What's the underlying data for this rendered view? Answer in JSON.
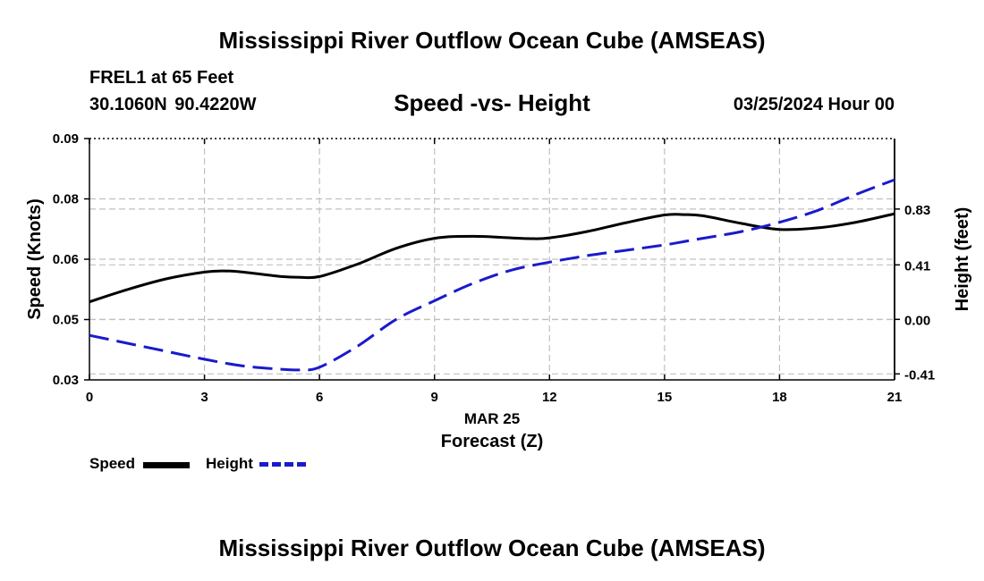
{
  "header": {
    "main_title": "Mississippi River Outflow Ocean Cube (AMSEAS)",
    "station": "FREL1 at 65 Feet",
    "coordinates": "30.1060N  90.4220W",
    "chart_title": "Speed -vs- Height",
    "datetime": "03/25/2024 Hour 00"
  },
  "footer": {
    "title": "Mississippi River Outflow Ocean Cube (AMSEAS)"
  },
  "legend": {
    "speed_label": "Speed",
    "height_label": "Height"
  },
  "colors": {
    "speed": "#000000",
    "height": "#1a1acc",
    "grid": "#c0c0c0"
  },
  "chart_data": {
    "type": "line",
    "title": "Speed -vs- Height",
    "xlabel": "Forecast (Z)",
    "xlabel_date": "MAR 25",
    "ylabel": "Speed (Knots)",
    "y2label": "Height (feet)",
    "xlim": [
      0,
      21
    ],
    "x_ticks": [
      0,
      3,
      6,
      9,
      12,
      15,
      18,
      21
    ],
    "ylim": [
      0.03,
      0.09
    ],
    "y_ticks": [
      0.03,
      0.045,
      0.06,
      0.075,
      0.09
    ],
    "y_tick_labels": [
      "0.03",
      "0.05",
      "0.06",
      "0.08",
      "0.09"
    ],
    "y2lim": [
      -0.455,
      1.36
    ],
    "y2_ticks": [
      -0.41,
      0.0,
      0.41,
      0.83
    ],
    "y2_tick_labels": [
      "-0.41",
      "0.00",
      "0.41",
      "0.83"
    ],
    "grid": true,
    "legend_position": "bottom-left",
    "series": [
      {
        "name": "Speed",
        "axis": "left",
        "style": "solid",
        "x": [
          0,
          1,
          2,
          3,
          3.5,
          4,
          5,
          5.5,
          6,
          7,
          8,
          9,
          10,
          11,
          11.5,
          12,
          13,
          14,
          15,
          15.5,
          16,
          17,
          18,
          19,
          20,
          21
        ],
        "values": [
          0.0494,
          0.0525,
          0.0551,
          0.0568,
          0.0571,
          0.0568,
          0.0557,
          0.0555,
          0.0557,
          0.0588,
          0.0627,
          0.0652,
          0.0657,
          0.0653,
          0.0651,
          0.0653,
          0.0669,
          0.0691,
          0.071,
          0.0711,
          0.0708,
          0.0689,
          0.0674,
          0.0678,
          0.0692,
          0.0713
        ]
      },
      {
        "name": "Height",
        "axis": "right",
        "style": "dashed",
        "x": [
          0,
          1,
          2,
          3,
          4,
          5,
          5.5,
          6,
          7,
          8,
          9,
          10,
          11,
          12,
          13,
          14,
          15,
          16,
          17,
          18,
          19,
          20,
          21
        ],
        "values": [
          -0.12,
          -0.18,
          -0.24,
          -0.3,
          -0.35,
          -0.375,
          -0.38,
          -0.36,
          -0.2,
          0.0,
          0.14,
          0.27,
          0.37,
          0.43,
          0.48,
          0.52,
          0.56,
          0.61,
          0.66,
          0.73,
          0.82,
          0.94,
          1.05
        ]
      }
    ]
  }
}
